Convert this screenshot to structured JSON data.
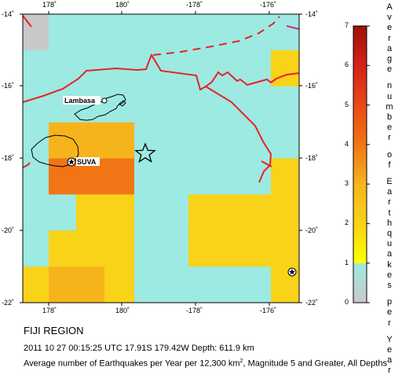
{
  "map": {
    "region_title": "FIJI REGION",
    "event_line": "2011 10 27 00:15:25 UTC 17.91S 179.42W Depth: 611.9 km",
    "description": {
      "prefix": "Average number of Earthquakes per Year per 12,300 km",
      "superscript": "2",
      "suffix": ", Magnitude 5 and Greater, All Depths"
    },
    "x_tick_labels": [
      "178˚",
      "180˚",
      "-178˚",
      "-176˚"
    ],
    "y_tick_labels": [
      "-14˚",
      "-16˚",
      "-18˚",
      "-20˚",
      "-22˚"
    ],
    "place_labels": {
      "lambasa": "Lambasa",
      "suva": "SUVA"
    },
    "grid_rates": [
      [
        0.0,
        0.5,
        0.5,
        0.5,
        0.5,
        0.5,
        0.5,
        0.5,
        0.5
      ],
      [
        0.5,
        0.5,
        0.5,
        0.5,
        0.5,
        0.5,
        0.5,
        0.5,
        1.5
      ],
      [
        0.5,
        0.5,
        0.5,
        0.5,
        0.5,
        0.5,
        0.5,
        0.5,
        0.5
      ],
      [
        0.5,
        2.5,
        2.5,
        2.5,
        0.5,
        0.5,
        0.5,
        0.5,
        0.5
      ],
      [
        0.5,
        3.5,
        3.5,
        3.5,
        0.5,
        0.5,
        0.5,
        0.5,
        1.5
      ],
      [
        0.5,
        0.5,
        2.0,
        2.0,
        0.5,
        0.5,
        1.5,
        1.5,
        1.5
      ],
      [
        0.5,
        1.5,
        1.5,
        2.0,
        0.5,
        0.5,
        1.5,
        1.5,
        1.5
      ],
      [
        1.5,
        2.5,
        2.5,
        1.5,
        0.5,
        0.5,
        0.5,
        0.5,
        2.0
      ]
    ],
    "colors": {
      "plate_boundary": "#e8222a",
      "coastline": "#000000",
      "spreading_ridge": "#e0208a"
    }
  },
  "legend": {
    "title_words": [
      "Average",
      "number",
      "of",
      "Earthquakes",
      "per",
      "Year"
    ],
    "tick_labels": [
      "0",
      "1",
      "2",
      "3",
      "4",
      "5",
      "6",
      "7"
    ],
    "range": [
      0,
      7
    ],
    "color_stops": [
      {
        "value": 0,
        "color": "#c8c8c8"
      },
      {
        "value": 1,
        "color": "#9ceae2"
      },
      {
        "value": 1.01,
        "color": "#ffff00"
      },
      {
        "value": 2,
        "color": "#f9d21a"
      },
      {
        "value": 3,
        "color": "#f6b41c"
      },
      {
        "value": 4,
        "color": "#f17515"
      },
      {
        "value": 5,
        "color": "#e84a17"
      },
      {
        "value": 6,
        "color": "#d42118"
      },
      {
        "value": 7,
        "color": "#a00e0a"
      }
    ]
  },
  "markers": {
    "epicenter_icon": "star-outline-icon",
    "city_icon": "star-in-circle-icon"
  }
}
